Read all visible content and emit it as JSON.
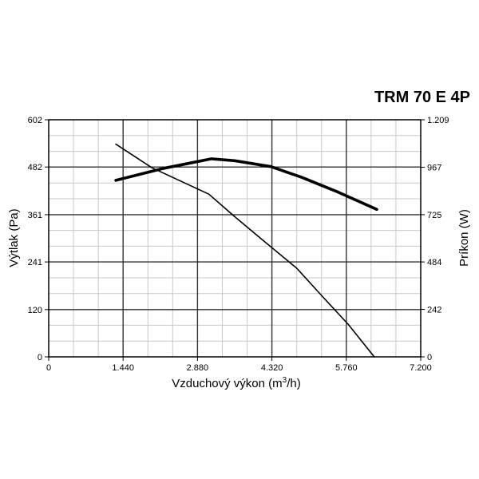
{
  "chart_data": {
    "type": "line",
    "title": "TRM 70 E 4P",
    "xlabel": "Vzduchový výkon (m",
    "xlabel_sup": "3",
    "xlabel_end": "/h)",
    "ylabel_left": "Výtlak (Pa)",
    "ylabel_right": "Príkon (W)",
    "xlim": [
      0,
      7200
    ],
    "ylim_left": [
      0,
      602
    ],
    "ylim_right": [
      0,
      1209
    ],
    "x_tick_values": [
      0,
      1440,
      2880,
      4320,
      5760,
      7200
    ],
    "x_tick_labels": [
      "0",
      "1.440",
      "2.880",
      "4.320",
      "5.760",
      "7.200"
    ],
    "y_left_tick_values": [
      0,
      120,
      241,
      361,
      482,
      602
    ],
    "y_left_tick_labels": [
      "0",
      "120",
      "241",
      "361",
      "482",
      "602"
    ],
    "y_right_tick_values": [
      0,
      242,
      484,
      725,
      967,
      1209
    ],
    "y_right_tick_labels": [
      "0",
      "242",
      "484",
      "725",
      "967",
      "1.209"
    ],
    "grid": true,
    "series": [
      {
        "axis": "left",
        "x": [
          1300,
          2000,
          3100,
          3600,
          4100,
          4800,
          5300,
          5800,
          6300
        ],
        "y": [
          540,
          480,
          413,
          356,
          301,
          225,
          153,
          82,
          0
        ]
      },
      {
        "axis": "right",
        "x": [
          1300,
          2200,
          3150,
          3600,
          4300,
          4900,
          5600,
          6350
        ],
        "y": [
          900,
          960,
          1010,
          1000,
          970,
          915,
          840,
          752
        ]
      }
    ]
  }
}
